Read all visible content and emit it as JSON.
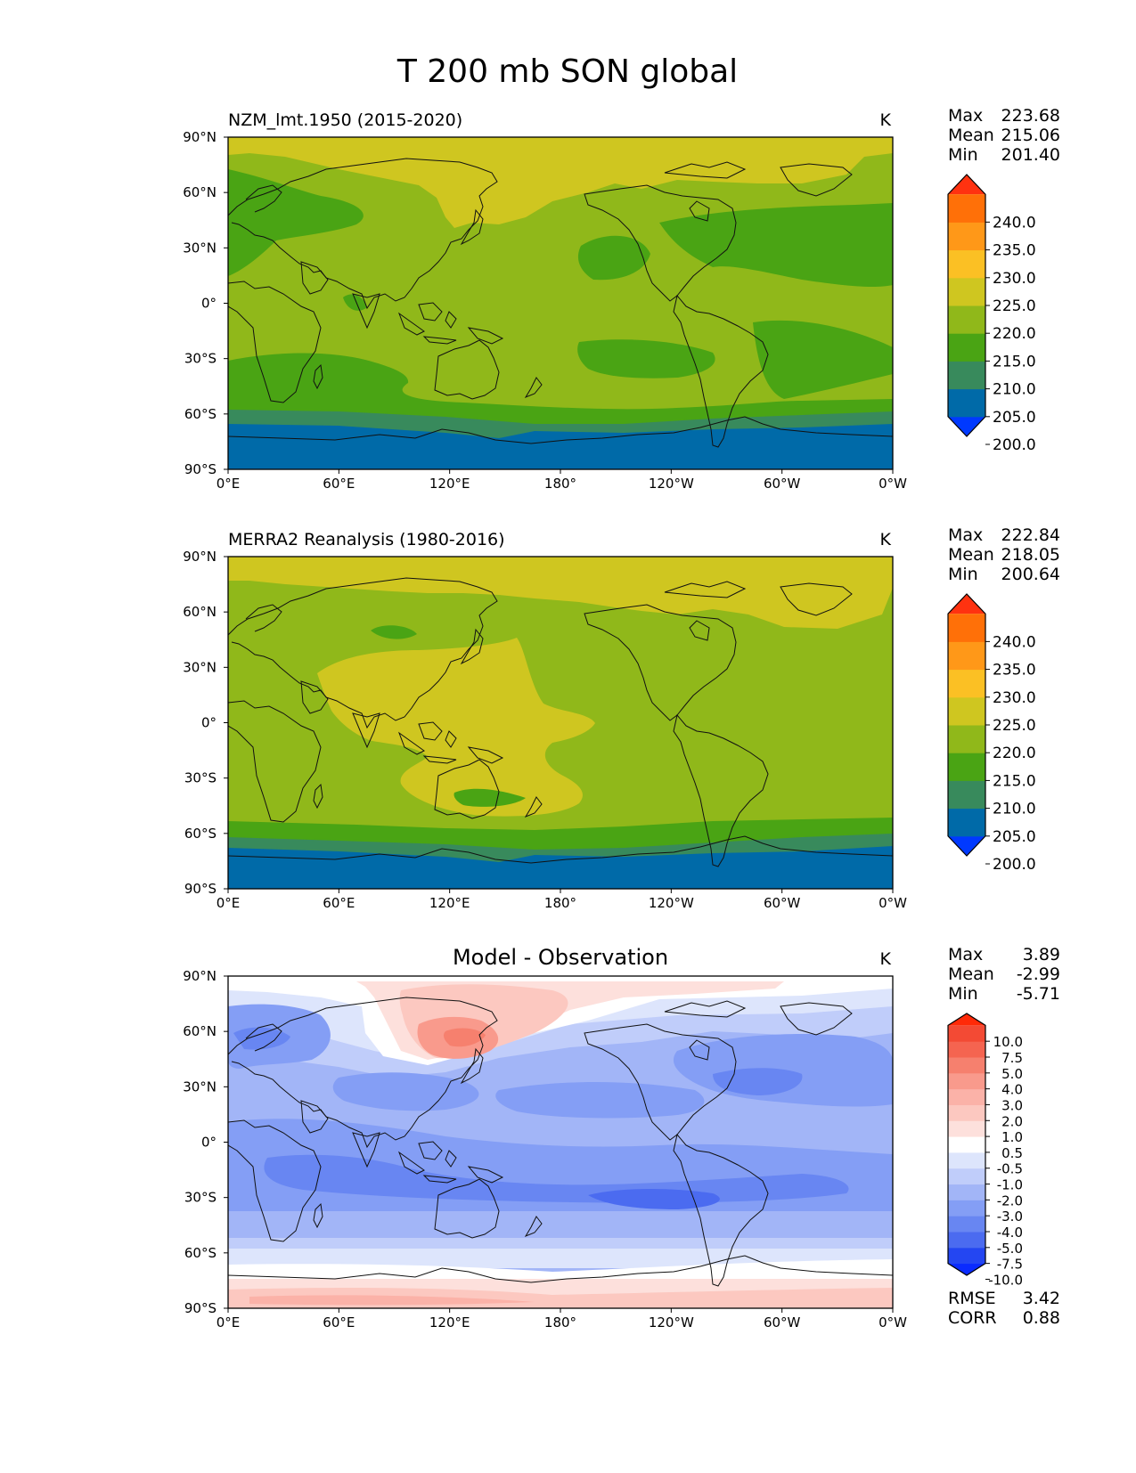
{
  "title": "T 200 mb SON global",
  "x_ticks": [
    "0°E",
    "60°E",
    "120°E",
    "180°",
    "120°W",
    "60°W",
    "0°W"
  ],
  "y_ticks": [
    "90°N",
    "60°N",
    "30°N",
    "0°",
    "30°S",
    "60°S",
    "90°S"
  ],
  "panels": [
    {
      "title": "NZM_lmt.1950 (2015-2020)",
      "units": "K",
      "stats": [
        {
          "label": "Max",
          "value": "223.68"
        },
        {
          "label": "Mean",
          "value": "215.06"
        },
        {
          "label": "Min",
          "value": "201.40"
        }
      ],
      "colorbar": {
        "labels": [
          "240.0",
          "235.0",
          "230.0",
          "225.0",
          "220.0",
          "215.0",
          "210.0",
          "205.0",
          "200.0"
        ],
        "colors": [
          "#0039ff",
          "#006aa8",
          "#388a5c",
          "#4aa414",
          "#90b81a",
          "#cfc620",
          "#fbc024",
          "#ff9818",
          "#ff7008",
          "#ff3210"
        ]
      }
    },
    {
      "title": "MERRA2 Reanalysis (1980-2016)",
      "units": "K",
      "stats": [
        {
          "label": "Max",
          "value": "222.84"
        },
        {
          "label": "Mean",
          "value": "218.05"
        },
        {
          "label": "Min",
          "value": "200.64"
        }
      ],
      "colorbar": {
        "labels": [
          "240.0",
          "235.0",
          "230.0",
          "225.0",
          "220.0",
          "215.0",
          "210.0",
          "205.0",
          "200.0"
        ],
        "colors": [
          "#0039ff",
          "#006aa8",
          "#388a5c",
          "#4aa414",
          "#90b81a",
          "#cfc620",
          "#fbc024",
          "#ff9818",
          "#ff7008",
          "#ff3210"
        ]
      }
    },
    {
      "title": "Model - Observation",
      "units": "K",
      "stats": [
        {
          "label": "Max",
          "value": "3.89"
        },
        {
          "label": "Mean",
          "value": "-2.99"
        },
        {
          "label": "Min",
          "value": "-5.71"
        }
      ],
      "colorbar": {
        "labels": [
          "10.0",
          "7.5",
          "5.0",
          "4.0",
          "3.0",
          "2.0",
          "1.0",
          "0.5",
          "-0.5",
          "-1.0",
          "-2.0",
          "-3.0",
          "-4.0",
          "-5.0",
          "-7.5",
          "-10.0"
        ],
        "colors": [
          "#0a2bff",
          "#2446f2",
          "#4b6bf0",
          "#6886f2",
          "#849ef5",
          "#a2b5f7",
          "#c0cdfa",
          "#dde5fc",
          "#ffffff",
          "#fde0dc",
          "#fcc8c0",
          "#fbb2a8",
          "#f99a8c",
          "#f6806e",
          "#f56450",
          "#f34a34",
          "#ff2a08"
        ]
      },
      "extra_stats": [
        {
          "label": "RMSE",
          "value": "3.42"
        },
        {
          "label": "CORR",
          "value": "0.88"
        }
      ]
    }
  ]
}
